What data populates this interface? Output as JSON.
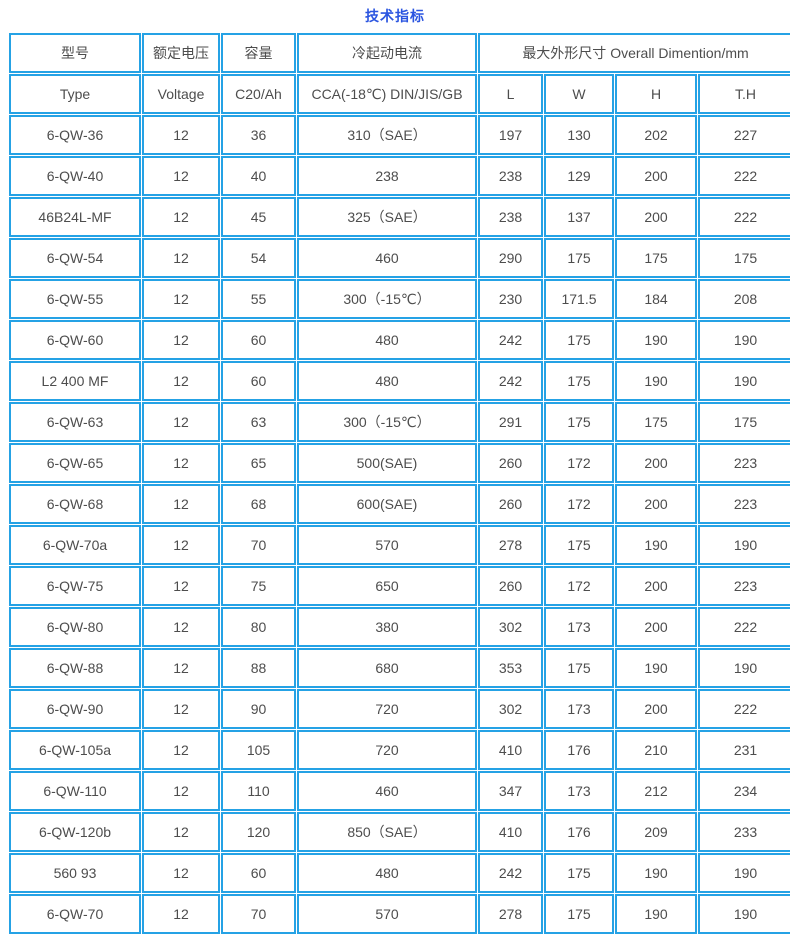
{
  "page": {
    "title": "技术指标"
  },
  "colors": {
    "border_blue": "#25a2e5",
    "title_blue": "#2b55e0",
    "text_gray": "#4d4d4d"
  },
  "table": {
    "header_row1": {
      "type": "型号",
      "voltage": "额定电压",
      "capacity": "容量",
      "cca": "冷起动电流",
      "dimensions": "最大外形尺寸 Overall Dimention/mm"
    },
    "header_row2": [
      "Type",
      "Voltage",
      "C20/Ah",
      "CCA(-18℃) DIN/JIS/GB",
      "L",
      "W",
      "H",
      "T.H"
    ],
    "rows": [
      [
        "6-QW-36",
        "12",
        "36",
        "310（SAE）",
        "197",
        "130",
        "202",
        "227"
      ],
      [
        "6-QW-40",
        "12",
        "40",
        "238",
        "238",
        "129",
        "200",
        "222"
      ],
      [
        "46B24L-MF",
        "12",
        "45",
        "325（SAE）",
        "238",
        "137",
        "200",
        "222"
      ],
      [
        "6-QW-54",
        "12",
        "54",
        "460",
        "290",
        "175",
        "175",
        "175"
      ],
      [
        "6-QW-55",
        "12",
        "55",
        "300（-15℃）",
        "230",
        "171.5",
        "184",
        "208"
      ],
      [
        "6-QW-60",
        "12",
        "60",
        "480",
        "242",
        "175",
        "190",
        "190"
      ],
      [
        "L2 400 MF",
        "12",
        "60",
        "480",
        "242",
        "175",
        "190",
        "190"
      ],
      [
        "6-QW-63",
        "12",
        "63",
        "300（-15℃）",
        "291",
        "175",
        "175",
        "175"
      ],
      [
        "6-QW-65",
        "12",
        "65",
        "500(SAE)",
        "260",
        "172",
        "200",
        "223"
      ],
      [
        "6-QW-68",
        "12",
        "68",
        "600(SAE)",
        "260",
        "172",
        "200",
        "223"
      ],
      [
        "6-QW-70a",
        "12",
        "70",
        "570",
        "278",
        "175",
        "190",
        "190"
      ],
      [
        "6-QW-75",
        "12",
        "75",
        "650",
        "260",
        "172",
        "200",
        "223"
      ],
      [
        "6-QW-80",
        "12",
        "80",
        "380",
        "302",
        "173",
        "200",
        "222"
      ],
      [
        "6-QW-88",
        "12",
        "88",
        "680",
        "353",
        "175",
        "190",
        "190"
      ],
      [
        "6-QW-90",
        "12",
        "90",
        "720",
        "302",
        "173",
        "200",
        "222"
      ],
      [
        "6-QW-105a",
        "12",
        "105",
        "720",
        "410",
        "176",
        "210",
        "231"
      ],
      [
        "6-QW-110",
        "12",
        "110",
        "460",
        "347",
        "173",
        "212",
        "234"
      ],
      [
        "6-QW-120b",
        "12",
        "120",
        "850（SAE）",
        "410",
        "176",
        "209",
        "233"
      ],
      [
        "560 93",
        "12",
        "60",
        "480",
        "242",
        "175",
        "190",
        "190"
      ],
      [
        "6-QW-70",
        "12",
        "70",
        "570",
        "278",
        "175",
        "190",
        "190"
      ]
    ]
  }
}
